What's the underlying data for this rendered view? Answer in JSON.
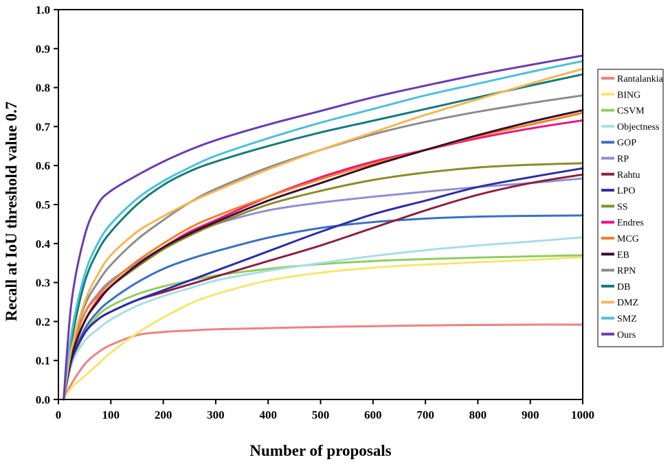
{
  "chart_data": {
    "type": "line",
    "title": "",
    "xlabel": "Number of proposals",
    "ylabel": "Recall at IoU threshold value 0.7",
    "xlim": [
      0,
      1000
    ],
    "ylim": [
      0.0,
      1.0
    ],
    "xticks": [
      0,
      100,
      200,
      300,
      400,
      500,
      600,
      700,
      800,
      900,
      1000
    ],
    "yticks": [
      "0.0",
      "0.1",
      "0.2",
      "0.3",
      "0.4",
      "0.5",
      "0.6",
      "0.7",
      "0.8",
      "0.9",
      "1.0"
    ],
    "grid": false,
    "legend_position": "right",
    "x": [
      10,
      25,
      50,
      75,
      100,
      150,
      200,
      250,
      300,
      400,
      500,
      600,
      700,
      800,
      900,
      1000
    ],
    "series": [
      {
        "name": "Rantalankia",
        "color": "#f08080",
        "values": [
          0.0,
          0.04,
          0.09,
          0.12,
          0.14,
          0.165,
          0.173,
          0.177,
          0.18,
          0.183,
          0.186,
          0.188,
          0.19,
          0.191,
          0.192,
          0.192
        ]
      },
      {
        "name": "BING",
        "color": "#f5e66e",
        "values": [
          0.0,
          0.03,
          0.06,
          0.09,
          0.12,
          0.17,
          0.21,
          0.245,
          0.27,
          0.305,
          0.325,
          0.338,
          0.346,
          0.352,
          0.358,
          0.365
        ]
      },
      {
        "name": "CSVM",
        "color": "#8fce5e",
        "values": [
          0.0,
          0.09,
          0.17,
          0.215,
          0.24,
          0.27,
          0.29,
          0.305,
          0.318,
          0.335,
          0.347,
          0.355,
          0.36,
          0.364,
          0.367,
          0.37
        ]
      },
      {
        "name": "Objectness",
        "color": "#a8dde6",
        "values": [
          0.0,
          0.09,
          0.15,
          0.18,
          0.205,
          0.24,
          0.265,
          0.285,
          0.305,
          0.33,
          0.35,
          0.368,
          0.383,
          0.395,
          0.405,
          0.416
        ]
      },
      {
        "name": "GOP",
        "color": "#3a6fc4",
        "values": [
          0.0,
          0.1,
          0.18,
          0.225,
          0.255,
          0.3,
          0.335,
          0.36,
          0.38,
          0.415,
          0.44,
          0.455,
          0.464,
          0.469,
          0.471,
          0.472
        ]
      },
      {
        "name": "RP",
        "color": "#8f8fd0",
        "values": [
          0.0,
          0.12,
          0.22,
          0.27,
          0.305,
          0.35,
          0.39,
          0.425,
          0.45,
          0.485,
          0.505,
          0.52,
          0.533,
          0.545,
          0.555,
          0.567
        ]
      },
      {
        "name": "Rahtu",
        "color": "#8b2040",
        "values": [
          0.0,
          0.1,
          0.17,
          0.205,
          0.225,
          0.255,
          0.275,
          0.295,
          0.315,
          0.355,
          0.395,
          0.44,
          0.485,
          0.525,
          0.555,
          0.577
        ]
      },
      {
        "name": "LPO",
        "color": "#2c2ca8",
        "values": [
          0.0,
          0.1,
          0.17,
          0.205,
          0.225,
          0.255,
          0.28,
          0.305,
          0.33,
          0.38,
          0.43,
          0.475,
          0.51,
          0.545,
          0.57,
          0.593
        ]
      },
      {
        "name": "SS",
        "color": "#8b8b2a",
        "values": [
          0.0,
          0.12,
          0.2,
          0.255,
          0.29,
          0.34,
          0.385,
          0.42,
          0.45,
          0.5,
          0.535,
          0.563,
          0.582,
          0.595,
          0.602,
          0.606
        ]
      },
      {
        "name": "Endres",
        "color": "#ee1180",
        "values": [
          0.0,
          0.11,
          0.2,
          0.255,
          0.29,
          0.345,
          0.39,
          0.43,
          0.46,
          0.52,
          0.57,
          0.61,
          0.64,
          0.67,
          0.695,
          0.716
        ]
      },
      {
        "name": "MCG",
        "color": "#f57f20",
        "values": [
          0.0,
          0.12,
          0.22,
          0.265,
          0.3,
          0.355,
          0.4,
          0.44,
          0.47,
          0.52,
          0.565,
          0.605,
          0.64,
          0.675,
          0.705,
          0.735
        ]
      },
      {
        "name": "EB",
        "color": "#3b0b2c",
        "values": [
          0.0,
          0.11,
          0.2,
          0.25,
          0.29,
          0.345,
          0.39,
          0.425,
          0.455,
          0.51,
          0.555,
          0.6,
          0.64,
          0.678,
          0.712,
          0.742
        ]
      },
      {
        "name": "RPN",
        "color": "#8c8c8c",
        "values": [
          0.0,
          0.13,
          0.24,
          0.3,
          0.345,
          0.41,
          0.46,
          0.505,
          0.54,
          0.595,
          0.64,
          0.68,
          0.712,
          0.738,
          0.76,
          0.78
        ]
      },
      {
        "name": "DB",
        "color": "#157a7a",
        "values": [
          0.0,
          0.15,
          0.3,
          0.38,
          0.43,
          0.5,
          0.55,
          0.585,
          0.61,
          0.65,
          0.685,
          0.715,
          0.745,
          0.775,
          0.805,
          0.834
        ]
      },
      {
        "name": "DMZ",
        "color": "#f5b653",
        "values": [
          0.0,
          0.13,
          0.25,
          0.32,
          0.37,
          0.43,
          0.47,
          0.505,
          0.535,
          0.59,
          0.64,
          0.685,
          0.73,
          0.77,
          0.81,
          0.848
        ]
      },
      {
        "name": "SMZ",
        "color": "#4bc0d9",
        "values": [
          0.0,
          0.17,
          0.32,
          0.4,
          0.45,
          0.515,
          0.56,
          0.595,
          0.625,
          0.67,
          0.71,
          0.745,
          0.78,
          0.81,
          0.84,
          0.868
        ]
      },
      {
        "name": "Ours",
        "color": "#6c3ab0",
        "values": [
          0.0,
          0.25,
          0.42,
          0.5,
          0.535,
          0.575,
          0.61,
          0.64,
          0.665,
          0.705,
          0.74,
          0.775,
          0.805,
          0.833,
          0.858,
          0.882
        ]
      }
    ]
  }
}
